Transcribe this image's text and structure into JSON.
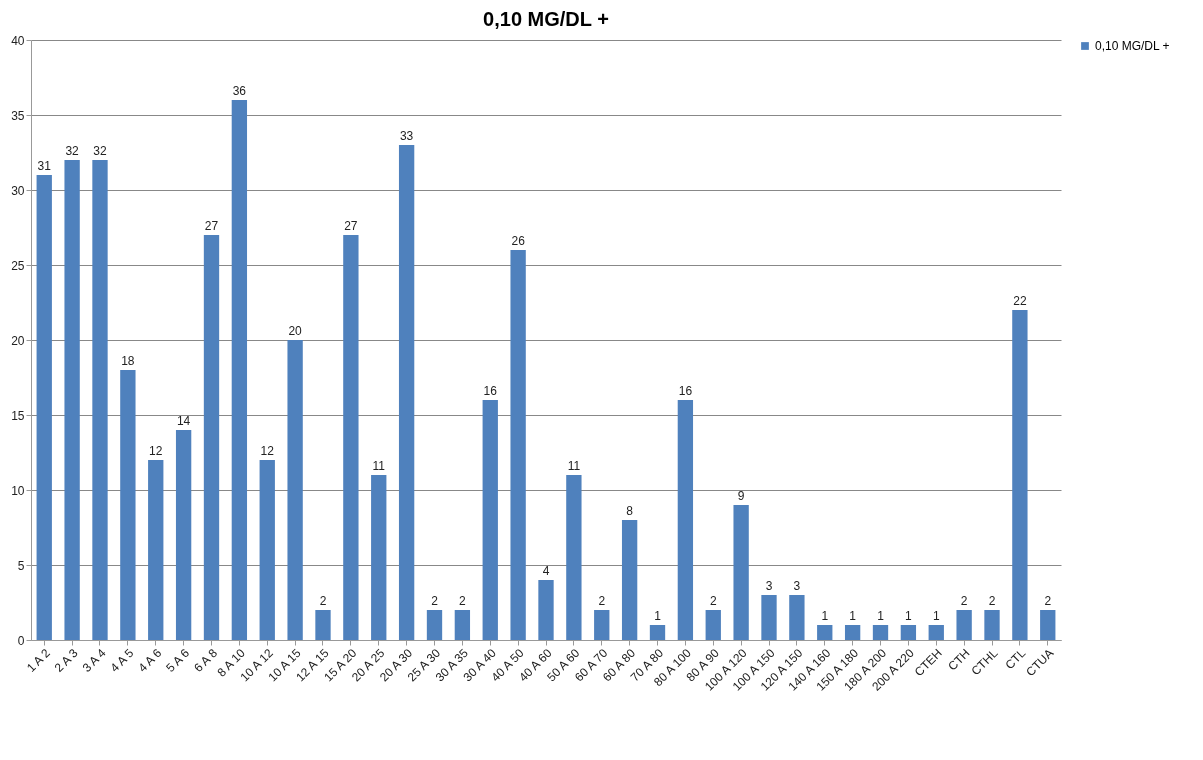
{
  "chart_data": {
    "type": "bar",
    "title": "0,10 MG/DL +",
    "categories": [
      "1 A 2",
      "2 A 3",
      "3 A 4",
      "4 A 5",
      "4 A 6",
      "5 A 6",
      "6 A 8",
      "8 A 10",
      "10 A 12",
      "10 A 15",
      "12 A 15",
      "15 A 20",
      "20 A 25",
      "20 A 30",
      "25 A 30",
      "30 A 35",
      "30 A 40",
      "40 A 50",
      "40 A 60",
      "50 A 60",
      "60 A 70",
      "60 A 80",
      "70 A 80",
      "80 A 100",
      "80 A 90",
      "100 A 120",
      "100 A 150",
      "120 A 150",
      "140 A 160",
      "150 A 180",
      "180 A 200",
      "200 A 220",
      "CTEH",
      "CTH",
      "CTHL",
      "CTL",
      "CTUA"
    ],
    "series": [
      {
        "name": "0,10 MG/DL +",
        "color": "#4f81bd",
        "values": [
          31,
          32,
          32,
          18,
          12,
          14,
          27,
          36,
          12,
          20,
          2,
          27,
          11,
          33,
          2,
          2,
          16,
          26,
          4,
          11,
          2,
          8,
          1,
          16,
          2,
          9,
          3,
          3,
          1,
          1,
          1,
          1,
          1,
          2,
          2,
          22,
          2
        ]
      }
    ],
    "ylim": [
      0,
      40
    ],
    "yticks": [
      0,
      5,
      10,
      15,
      20,
      25,
      30,
      35,
      40
    ],
    "grid": "y",
    "legend": "right",
    "data_labels": true
  }
}
